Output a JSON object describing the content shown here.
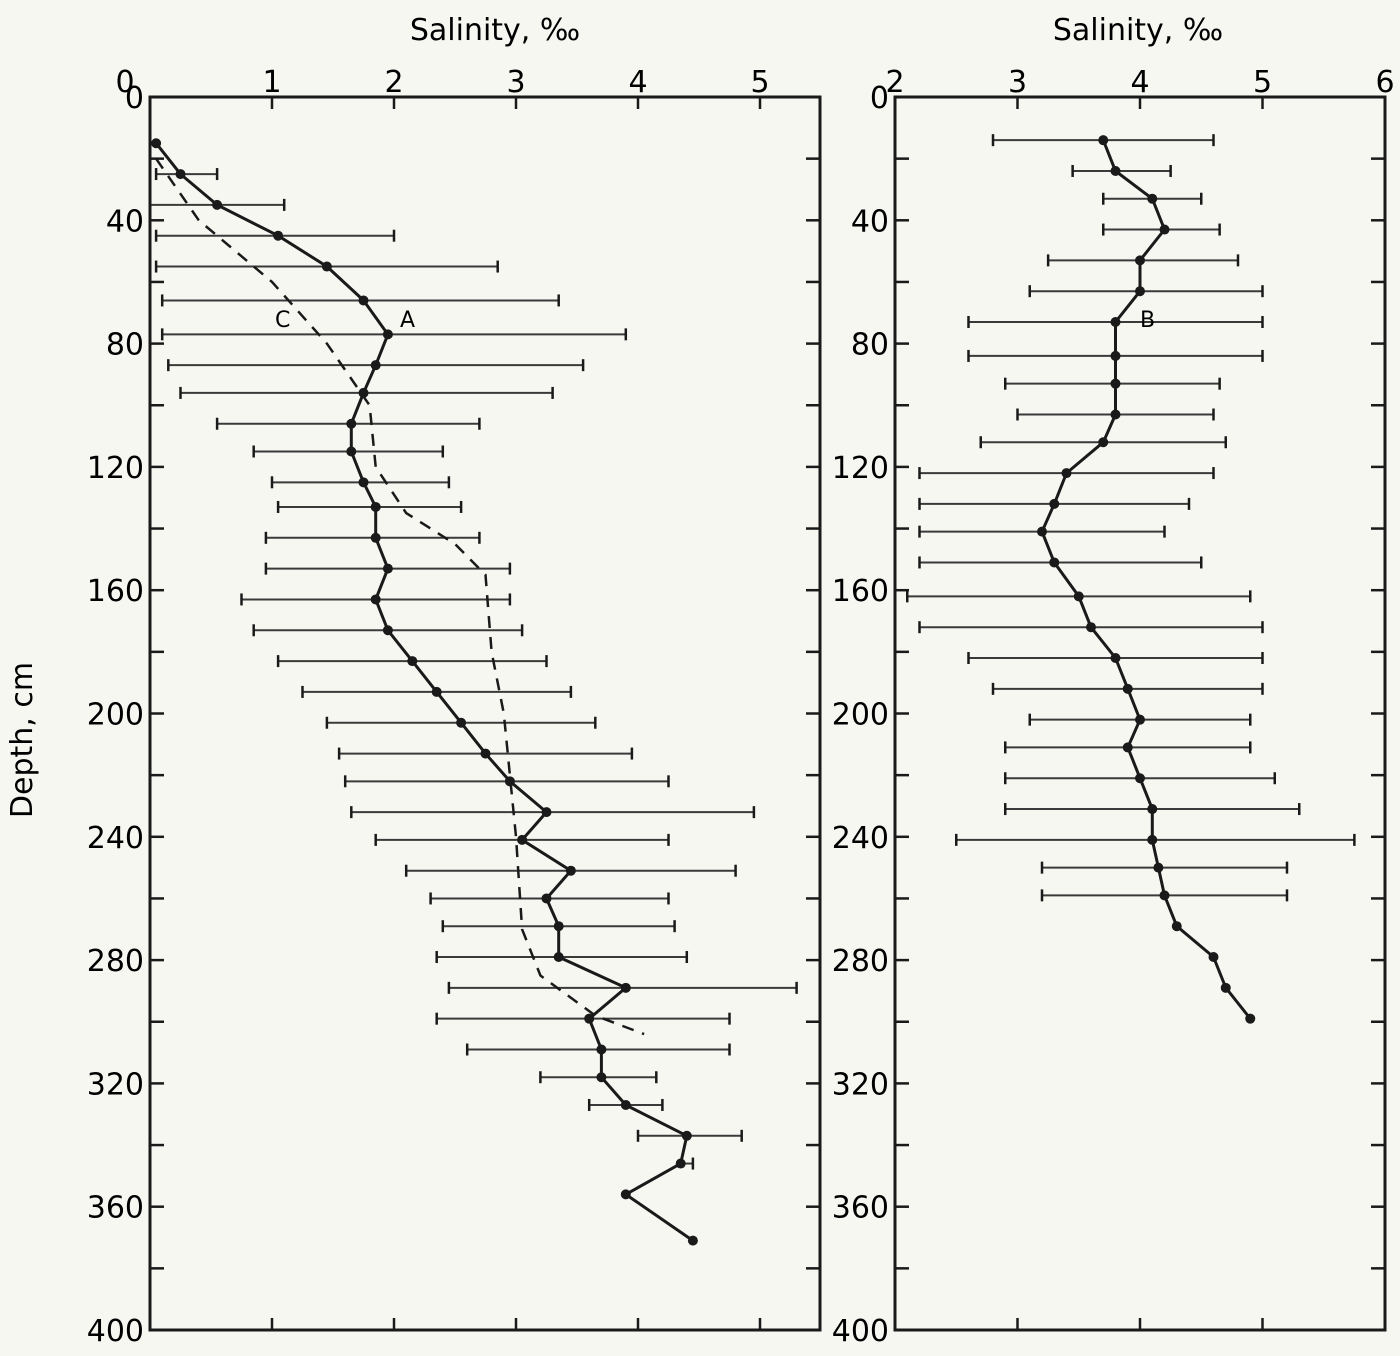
{
  "chart_data": [
    {
      "type": "line",
      "panel": "left",
      "title": "",
      "xlabel": "Salinity, ‰",
      "ylabel": "Depth, cm",
      "xlim": [
        0,
        5.5
      ],
      "ylim": [
        400,
        0
      ],
      "xticks": [
        "0",
        "1",
        "2",
        "3",
        "4",
        "5"
      ],
      "yticks": [
        "0",
        "40",
        "80",
        "120",
        "160",
        "200",
        "240",
        "280",
        "320",
        "360",
        "400"
      ],
      "grid": false,
      "annotations": [
        "A",
        "C"
      ],
      "series": [
        {
          "name": "A",
          "style": "solid with points and error bars",
          "points": [
            {
              "depth": 15,
              "salinity": 0.05
            },
            {
              "depth": 25,
              "salinity": 0.25,
              "min": 0.05,
              "max": 0.55
            },
            {
              "depth": 35,
              "salinity": 0.55,
              "min": 0.0,
              "max": 1.1
            },
            {
              "depth": 45,
              "salinity": 1.05,
              "min": 0.05,
              "max": 2.0
            },
            {
              "depth": 55,
              "salinity": 1.45,
              "min": 0.05,
              "max": 2.85
            },
            {
              "depth": 66,
              "salinity": 1.75,
              "min": 0.1,
              "max": 3.35
            },
            {
              "depth": 77,
              "salinity": 1.95,
              "min": 0.1,
              "max": 3.9
            },
            {
              "depth": 87,
              "salinity": 1.85,
              "min": 0.15,
              "max": 3.55
            },
            {
              "depth": 96,
              "salinity": 1.75,
              "min": 0.25,
              "max": 3.3
            },
            {
              "depth": 106,
              "salinity": 1.65,
              "min": 0.55,
              "max": 2.7
            },
            {
              "depth": 115,
              "salinity": 1.65,
              "min": 0.85,
              "max": 2.4
            },
            {
              "depth": 125,
              "salinity": 1.75,
              "min": 1.0,
              "max": 2.45
            },
            {
              "depth": 133,
              "salinity": 1.85,
              "min": 1.05,
              "max": 2.55
            },
            {
              "depth": 143,
              "salinity": 1.85,
              "min": 0.95,
              "max": 2.7
            },
            {
              "depth": 153,
              "salinity": 1.95,
              "min": 0.95,
              "max": 2.95
            },
            {
              "depth": 163,
              "salinity": 1.85,
              "min": 0.75,
              "max": 2.95
            },
            {
              "depth": 173,
              "salinity": 1.95,
              "min": 0.85,
              "max": 3.05
            },
            {
              "depth": 183,
              "salinity": 2.15,
              "min": 1.05,
              "max": 3.25
            },
            {
              "depth": 193,
              "salinity": 2.35,
              "min": 1.25,
              "max": 3.45
            },
            {
              "depth": 203,
              "salinity": 2.55,
              "min": 1.45,
              "max": 3.65
            },
            {
              "depth": 213,
              "salinity": 2.75,
              "min": 1.55,
              "max": 3.95
            },
            {
              "depth": 222,
              "salinity": 2.95,
              "min": 1.6,
              "max": 4.25
            },
            {
              "depth": 232,
              "salinity": 3.25,
              "min": 1.65,
              "max": 4.95
            },
            {
              "depth": 241,
              "salinity": 3.05,
              "min": 1.85,
              "max": 4.25
            },
            {
              "depth": 251,
              "salinity": 3.45,
              "min": 2.1,
              "max": 4.8
            },
            {
              "depth": 260,
              "salinity": 3.25,
              "min": 2.3,
              "max": 4.25
            },
            {
              "depth": 269,
              "salinity": 3.35,
              "min": 2.4,
              "max": 4.3
            },
            {
              "depth": 279,
              "salinity": 3.35,
              "min": 2.35,
              "max": 4.4
            },
            {
              "depth": 289,
              "salinity": 3.9,
              "min": 2.45,
              "max": 5.3
            },
            {
              "depth": 299,
              "salinity": 3.6,
              "min": 2.35,
              "max": 4.75
            },
            {
              "depth": 309,
              "salinity": 3.7,
              "min": 2.6,
              "max": 4.75
            },
            {
              "depth": 318,
              "salinity": 3.7,
              "min": 3.2,
              "max": 4.15
            },
            {
              "depth": 327,
              "salinity": 3.9,
              "min": 3.6,
              "max": 4.2
            },
            {
              "depth": 337,
              "salinity": 4.4,
              "min": 4.0,
              "max": 4.85
            },
            {
              "depth": 346,
              "salinity": 4.35,
              "max": 4.45
            },
            {
              "depth": 356,
              "salinity": 3.9
            },
            {
              "depth": 371,
              "salinity": 4.45
            }
          ]
        },
        {
          "name": "C",
          "style": "dashed",
          "points": [
            {
              "depth": 20,
              "salinity": 0.05
            },
            {
              "depth": 40,
              "salinity": 0.4
            },
            {
              "depth": 60,
              "salinity": 1.0
            },
            {
              "depth": 80,
              "salinity": 1.45
            },
            {
              "depth": 100,
              "salinity": 1.8
            },
            {
              "depth": 120,
              "salinity": 1.85
            },
            {
              "depth": 135,
              "salinity": 2.1
            },
            {
              "depth": 145,
              "salinity": 2.5
            },
            {
              "depth": 155,
              "salinity": 2.75
            },
            {
              "depth": 180,
              "salinity": 2.8
            },
            {
              "depth": 200,
              "salinity": 2.9
            },
            {
              "depth": 240,
              "salinity": 3.0
            },
            {
              "depth": 270,
              "salinity": 3.05
            },
            {
              "depth": 285,
              "salinity": 3.2
            },
            {
              "depth": 298,
              "salinity": 3.65
            },
            {
              "depth": 304,
              "salinity": 4.05
            }
          ]
        }
      ]
    },
    {
      "type": "line",
      "panel": "right",
      "title": "",
      "xlabel": "Salinity, ‰",
      "ylabel": "",
      "xlim": [
        2,
        6
      ],
      "ylim": [
        400,
        0
      ],
      "xticks": [
        "2",
        "3",
        "4",
        "5",
        "6"
      ],
      "yticks": [
        "0",
        "40",
        "80",
        "120",
        "160",
        "200",
        "240",
        "280",
        "320",
        "360",
        "400"
      ],
      "grid": false,
      "annotations": [
        "B"
      ],
      "series": [
        {
          "name": "B",
          "style": "solid with points and error bars",
          "points": [
            {
              "depth": 14,
              "salinity": 3.7,
              "min": 2.8,
              "max": 4.6
            },
            {
              "depth": 24,
              "salinity": 3.8,
              "min": 3.45,
              "max": 4.25
            },
            {
              "depth": 33,
              "salinity": 4.1,
              "min": 3.7,
              "max": 4.5
            },
            {
              "depth": 43,
              "salinity": 4.2,
              "min": 3.7,
              "max": 4.65
            },
            {
              "depth": 53,
              "salinity": 4.0,
              "min": 3.25,
              "max": 4.8
            },
            {
              "depth": 63,
              "salinity": 4.0,
              "min": 3.1,
              "max": 5.0
            },
            {
              "depth": 73,
              "salinity": 3.8,
              "min": 2.6,
              "max": 5.0
            },
            {
              "depth": 84,
              "salinity": 3.8,
              "min": 2.6,
              "max": 5.0
            },
            {
              "depth": 93,
              "salinity": 3.8,
              "min": 2.9,
              "max": 4.65
            },
            {
              "depth": 103,
              "salinity": 3.8,
              "min": 3.0,
              "max": 4.6
            },
            {
              "depth": 112,
              "salinity": 3.7,
              "min": 2.7,
              "max": 4.7
            },
            {
              "depth": 122,
              "salinity": 3.4,
              "min": 2.2,
              "max": 4.6
            },
            {
              "depth": 132,
              "salinity": 3.3,
              "min": 2.2,
              "max": 4.4
            },
            {
              "depth": 141,
              "salinity": 3.2,
              "min": 2.2,
              "max": 4.2
            },
            {
              "depth": 151,
              "salinity": 3.3,
              "min": 2.2,
              "max": 4.5
            },
            {
              "depth": 162,
              "salinity": 3.5,
              "min": 2.1,
              "max": 4.9
            },
            {
              "depth": 172,
              "salinity": 3.6,
              "min": 2.2,
              "max": 5.0
            },
            {
              "depth": 182,
              "salinity": 3.8,
              "min": 2.6,
              "max": 5.0
            },
            {
              "depth": 192,
              "salinity": 3.9,
              "min": 2.8,
              "max": 5.0
            },
            {
              "depth": 202,
              "salinity": 4.0,
              "min": 3.1,
              "max": 4.9
            },
            {
              "depth": 211,
              "salinity": 3.9,
              "min": 2.9,
              "max": 4.9
            },
            {
              "depth": 221,
              "salinity": 4.0,
              "min": 2.9,
              "max": 5.1
            },
            {
              "depth": 231,
              "salinity": 4.1,
              "min": 2.9,
              "max": 5.3
            },
            {
              "depth": 241,
              "salinity": 4.1,
              "min": 2.5,
              "max": 5.75
            },
            {
              "depth": 250,
              "salinity": 4.15,
              "min": 3.2,
              "max": 5.2
            },
            {
              "depth": 259,
              "salinity": 4.2,
              "min": 3.2,
              "max": 5.2
            },
            {
              "depth": 269,
              "salinity": 4.3
            },
            {
              "depth": 279,
              "salinity": 4.6
            },
            {
              "depth": 289,
              "salinity": 4.7
            },
            {
              "depth": 299,
              "salinity": 4.9
            }
          ]
        }
      ]
    }
  ],
  "labels": {
    "left_xlabel": "Salinity,  ‰",
    "right_xlabel": "Salinity,   ‰",
    "ylabel": "Depth,  cm",
    "curve_a": "A",
    "curve_b": "B",
    "curve_c": "C"
  },
  "colors": {
    "ink": "#1a1a1a",
    "paper": "#f7f7f2"
  }
}
